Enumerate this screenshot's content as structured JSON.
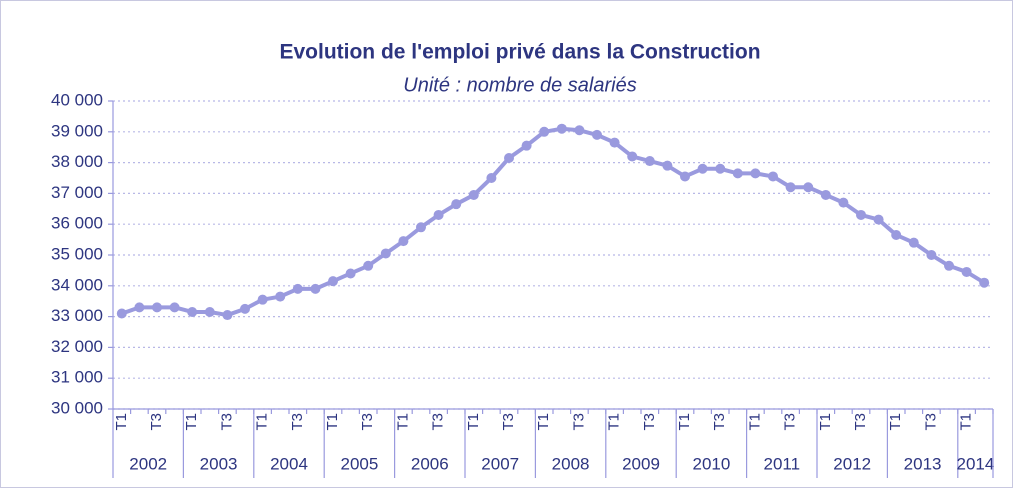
{
  "chart_data": {
    "type": "line",
    "title": "Evolution de l'emploi privé dans la Construction",
    "subtitle": "Unité : nombre de salariés",
    "categories": [
      "T1",
      null,
      "T3",
      null,
      "T1",
      null,
      "T3",
      null,
      "T1",
      null,
      "T3",
      null,
      "T1",
      null,
      "T3",
      null,
      "T1",
      null,
      "T3",
      null,
      "T1",
      null,
      "T3",
      null,
      "T1",
      null,
      "T3",
      null,
      "T1",
      null,
      "T3",
      null,
      "T1",
      null,
      "T3",
      null,
      "T1",
      null,
      "T3",
      null,
      "T1",
      null,
      "T3",
      null,
      "T1",
      null,
      "T3",
      null,
      "T1",
      null
    ],
    "year_groups": [
      "2002",
      "2003",
      "2004",
      "2005",
      "2006",
      "2007",
      "2008",
      "2009",
      "2010",
      "2011",
      "2012",
      "2013",
      "2014"
    ],
    "series": [
      {
        "color": "#9a9ade",
        "values": [
          33100,
          33300,
          33300,
          33300,
          33150,
          33150,
          33050,
          33250,
          33550,
          33650,
          33900,
          33900,
          34150,
          34400,
          34650,
          35050,
          35450,
          35900,
          36300,
          36650,
          36950,
          37500,
          38150,
          38550,
          39000,
          39100,
          39050,
          38900,
          38650,
          38200,
          38050,
          37900,
          37550,
          37800,
          37800,
          37650,
          37650,
          37550,
          37200,
          37200,
          36950,
          36700,
          36300,
          36150,
          35650,
          35400,
          35000,
          34650,
          34450,
          34100
        ]
      }
    ],
    "ylim": [
      30000,
      40000
    ],
    "yticks": [
      {
        "value": 30000,
        "label": "30 000"
      },
      {
        "value": 31000,
        "label": "31 000"
      },
      {
        "value": 32000,
        "label": "32 000"
      },
      {
        "value": 33000,
        "label": "33 000"
      },
      {
        "value": 34000,
        "label": "34 000"
      },
      {
        "value": 35000,
        "label": "35 000"
      },
      {
        "value": 36000,
        "label": "36 000"
      },
      {
        "value": 37000,
        "label": "37 000"
      },
      {
        "value": 38000,
        "label": "38 000"
      },
      {
        "value": 39000,
        "label": "39 000"
      },
      {
        "value": 40000,
        "label": "40 000"
      }
    ],
    "grid": true
  }
}
